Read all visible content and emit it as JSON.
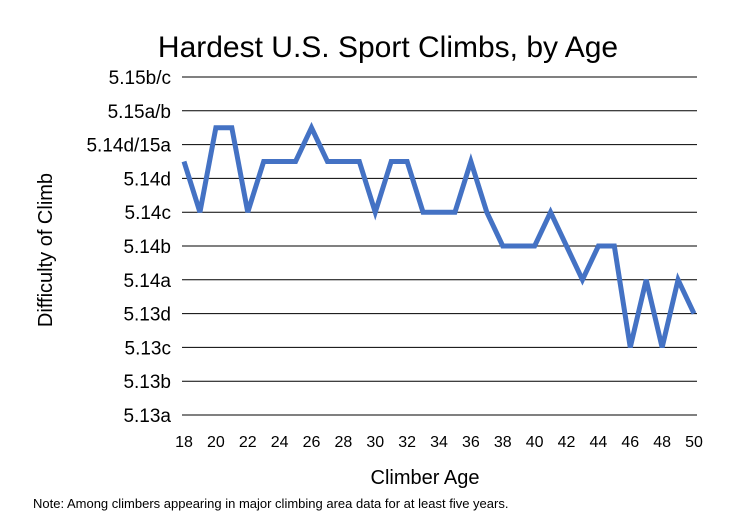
{
  "chart_data": {
    "type": "line",
    "title": "Hardest U.S. Sport Climbs, by Age",
    "xlabel": "Climber Age",
    "ylabel": "Difficulty of Climb",
    "note": "Note:  Among climbers appearing in major climbing area data for at least five years.",
    "x_ticks": [
      "18",
      "20",
      "22",
      "24",
      "26",
      "28",
      "30",
      "32",
      "34",
      "36",
      "38",
      "40",
      "42",
      "44",
      "46",
      "48",
      "50"
    ],
    "y_categories": [
      "5.13a",
      "5.13b",
      "5.13c",
      "5.13d",
      "5.14a",
      "5.14b",
      "5.14c",
      "5.14d",
      "5.14d/15a",
      "5.15a/b",
      "5.15b/c"
    ],
    "x": [
      18,
      19,
      20,
      21,
      22,
      23,
      24,
      25,
      26,
      27,
      28,
      29,
      30,
      31,
      32,
      33,
      34,
      35,
      36,
      37,
      38,
      39,
      40,
      41,
      42,
      43,
      44,
      45,
      46,
      47,
      48,
      49,
      50
    ],
    "series": [
      {
        "color": "#4472C4",
        "values": [
          7.5,
          6,
          8.5,
          8.5,
          6,
          7.5,
          7.5,
          7.5,
          8.5,
          7.5,
          7.5,
          7.5,
          6,
          7.5,
          7.5,
          6,
          6,
          6,
          7.5,
          6,
          5,
          5,
          5,
          6,
          5,
          4,
          5,
          5,
          2,
          4,
          2,
          4,
          3
        ]
      }
    ],
    "xlim": [
      18,
      50
    ],
    "ylim": [
      0,
      10
    ],
    "grid": true,
    "legend": "none"
  }
}
